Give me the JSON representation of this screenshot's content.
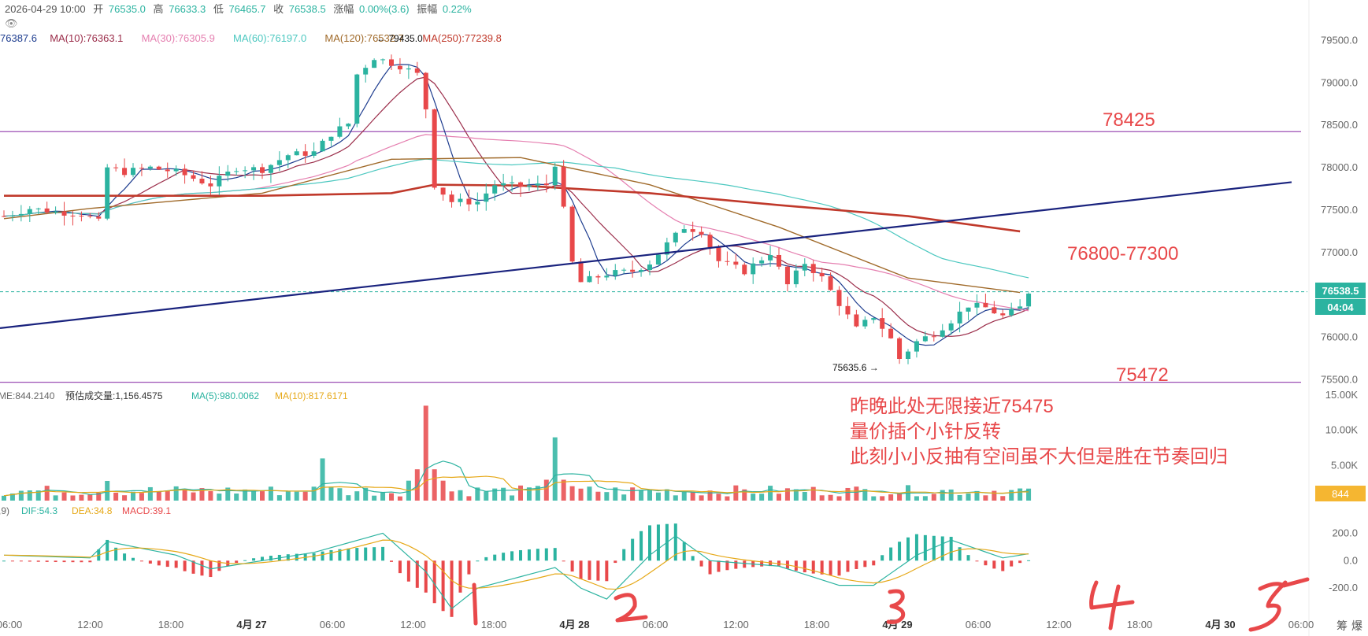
{
  "header": {
    "date": "2026-04-29 10:00",
    "open_label": "开",
    "open": "76535.0",
    "high_label": "高",
    "high": "76633.3",
    "low_label": "低",
    "low": "76465.7",
    "close_label": "收",
    "close": "76538.5",
    "change_label": "涨幅",
    "change": "0.00%(3.6)",
    "amplitude_label": "振幅",
    "amplitude": "0.22%"
  },
  "ma_legend": [
    {
      "text": "76387.6",
      "color": "#1e3d8f"
    },
    {
      "text": "MA(10):76363.1",
      "color": "#9b2d4a"
    },
    {
      "text": "MA(30):76305.9",
      "color": "#e57fb0"
    },
    {
      "text": "MA(60):76197.0",
      "color": "#4cc8c0"
    },
    {
      "text": "MA(120):76532.7",
      "color": "#a06a2a"
    },
    {
      "text": "MA(250):77239.8",
      "color": "#c0392b"
    }
  ],
  "volume_legend": [
    {
      "text": "ME:844.2140",
      "color": "#666666"
    },
    {
      "text": "预估成交量:1,156.4575",
      "color": "#333333"
    },
    {
      "text": "MA(5):980.0062",
      "color": "#2bb3a0"
    },
    {
      "text": "MA(10):817.6171",
      "color": "#e6a817"
    }
  ],
  "macd_legend": [
    {
      "text": ",9)",
      "color": "#666666"
    },
    {
      "text": "DIF:54.3",
      "color": "#2bb3a0"
    },
    {
      "text": "DEA:34.8",
      "color": "#e6a817"
    },
    {
      "text": "MACD:39.1",
      "color": "#e8484a"
    }
  ],
  "price_axis": [
    "79500.0",
    "79000.0",
    "78500.0",
    "78000.0",
    "77500.0",
    "77000.0",
    "76500.0",
    "76000.0",
    "75500.0"
  ],
  "volume_axis": [
    "15.00K",
    "10.00K",
    "5.00K"
  ],
  "macd_axis": [
    "200.0",
    "0.0",
    "-200.0"
  ],
  "time_axis": [
    {
      "label": "06:00",
      "bold": false
    },
    {
      "label": "12:00",
      "bold": false
    },
    {
      "label": "18:00",
      "bold": false
    },
    {
      "label": "4月 27",
      "bold": true
    },
    {
      "label": "06:00",
      "bold": false
    },
    {
      "label": "12:00",
      "bold": false
    },
    {
      "label": "18:00",
      "bold": false
    },
    {
      "label": "4月 28",
      "bold": true
    },
    {
      "label": "06:00",
      "bold": false
    },
    {
      "label": "12:00",
      "bold": false
    },
    {
      "label": "18:00",
      "bold": false
    },
    {
      "label": "4月 29",
      "bold": true
    },
    {
      "label": "06:00",
      "bold": false
    },
    {
      "label": "12:00",
      "bold": false
    },
    {
      "label": "18:00",
      "bold": false
    },
    {
      "label": "4月 30",
      "bold": true
    },
    {
      "label": "06:00",
      "bold": false
    }
  ],
  "corner_labels": [
    "筹",
    "爆"
  ],
  "current_price_tag": "76538.5",
  "countdown_tag": "04:04",
  "volume_tag": "844",
  "high_marker": "79435.0",
  "low_marker": "75635.6",
  "levels": [
    {
      "label": "78425",
      "price": 78425
    },
    {
      "label": "75472",
      "price": 75472
    }
  ],
  "zone_label": "76800-77300",
  "annotation_lines": [
    "昨晚此处无限接近75475",
    "量价插个小针反转",
    "此刻小小反抽有空间虽不大但是胜在节奏回归"
  ],
  "handwritten_numbers": [
    "1",
    "2",
    "3",
    "4",
    "5"
  ],
  "colors": {
    "up": "#2bb3a0",
    "down": "#e8484a",
    "level_line": "#9b4fb5",
    "trendline": "#1a237e",
    "annotation": "#e8484a",
    "price_tag": "#2bb3a0"
  },
  "chart_data": {
    "type": "candlestick",
    "symbol_interval": "1h",
    "xlabel": "",
    "ylabel": "",
    "ylim": [
      75400,
      79600
    ],
    "trendline": {
      "from": {
        "time": "2026-04-26 06:00",
        "price": 76110
      },
      "to": {
        "time": "2026-04-30 06:00",
        "price": 77830
      }
    },
    "ma250_path": [
      [
        0,
        77670
      ],
      [
        30,
        77670
      ],
      [
        45,
        77700
      ],
      [
        50,
        77800
      ],
      [
        60,
        77790
      ],
      [
        75,
        77700
      ],
      [
        90,
        77560
      ],
      [
        105,
        77430
      ],
      [
        118,
        77250
      ]
    ],
    "ma120_path": [
      [
        0,
        77400
      ],
      [
        10,
        77520
      ],
      [
        30,
        77700
      ],
      [
        45,
        78100
      ],
      [
        60,
        78120
      ],
      [
        75,
        77800
      ],
      [
        90,
        77300
      ],
      [
        105,
        76700
      ],
      [
        118,
        76530
      ]
    ],
    "price_path": [
      [
        0,
        77430
      ],
      [
        3,
        77520
      ],
      [
        6,
        77480
      ],
      [
        9,
        77460
      ],
      [
        11,
        77360
      ],
      [
        12,
        78000
      ],
      [
        14,
        77950
      ],
      [
        17,
        78000
      ],
      [
        20,
        77950
      ],
      [
        24,
        77800
      ],
      [
        27,
        78000
      ],
      [
        30,
        77980
      ],
      [
        33,
        78150
      ],
      [
        36,
        78180
      ],
      [
        38,
        78400
      ],
      [
        40,
        78520
      ],
      [
        41,
        79100
      ],
      [
        43,
        79300
      ],
      [
        46,
        79200
      ],
      [
        48,
        79100
      ],
      [
        49,
        78700
      ],
      [
        50,
        77800
      ],
      [
        52,
        77600
      ],
      [
        55,
        77600
      ],
      [
        57,
        77800
      ],
      [
        60,
        77780
      ],
      [
        63,
        77800
      ],
      [
        64,
        78050
      ],
      [
        65,
        77500
      ],
      [
        66,
        76880
      ],
      [
        67,
        76650
      ],
      [
        70,
        76750
      ],
      [
        73,
        76780
      ],
      [
        75,
        76880
      ],
      [
        77,
        77100
      ],
      [
        79,
        77300
      ],
      [
        81,
        77250
      ],
      [
        83,
        76900
      ],
      [
        86,
        76780
      ],
      [
        89,
        77000
      ],
      [
        91,
        76620
      ],
      [
        93,
        76880
      ],
      [
        95,
        76700
      ],
      [
        97,
        76400
      ],
      [
        99,
        76100
      ],
      [
        101,
        76250
      ],
      [
        103,
        75980
      ],
      [
        104,
        75750
      ],
      [
        106,
        75950
      ],
      [
        108,
        76050
      ],
      [
        110,
        76200
      ],
      [
        112,
        76380
      ],
      [
        114,
        76350
      ],
      [
        116,
        76250
      ],
      [
        118,
        76350
      ],
      [
        119,
        76538
      ]
    ],
    "volume_range": [
      0,
      15000
    ],
    "volume_spikes": [
      [
        49,
        13500
      ],
      [
        64,
        9000
      ],
      [
        37,
        6000
      ],
      [
        12,
        2800
      ]
    ],
    "macd_range": [
      -400,
      300
    ],
    "macd_path": [
      [
        0,
        40
      ],
      [
        10,
        20
      ],
      [
        12,
        140
      ],
      [
        20,
        40
      ],
      [
        24,
        -60
      ],
      [
        36,
        60
      ],
      [
        44,
        200
      ],
      [
        49,
        -80
      ],
      [
        52,
        -350
      ],
      [
        55,
        -200
      ],
      [
        64,
        -50
      ],
      [
        67,
        -200
      ],
      [
        70,
        -280
      ],
      [
        75,
        40
      ],
      [
        78,
        180
      ],
      [
        82,
        0
      ],
      [
        90,
        -40
      ],
      [
        97,
        -180
      ],
      [
        101,
        -180
      ],
      [
        106,
        40
      ],
      [
        110,
        150
      ],
      [
        116,
        20
      ],
      [
        119,
        50
      ]
    ]
  }
}
